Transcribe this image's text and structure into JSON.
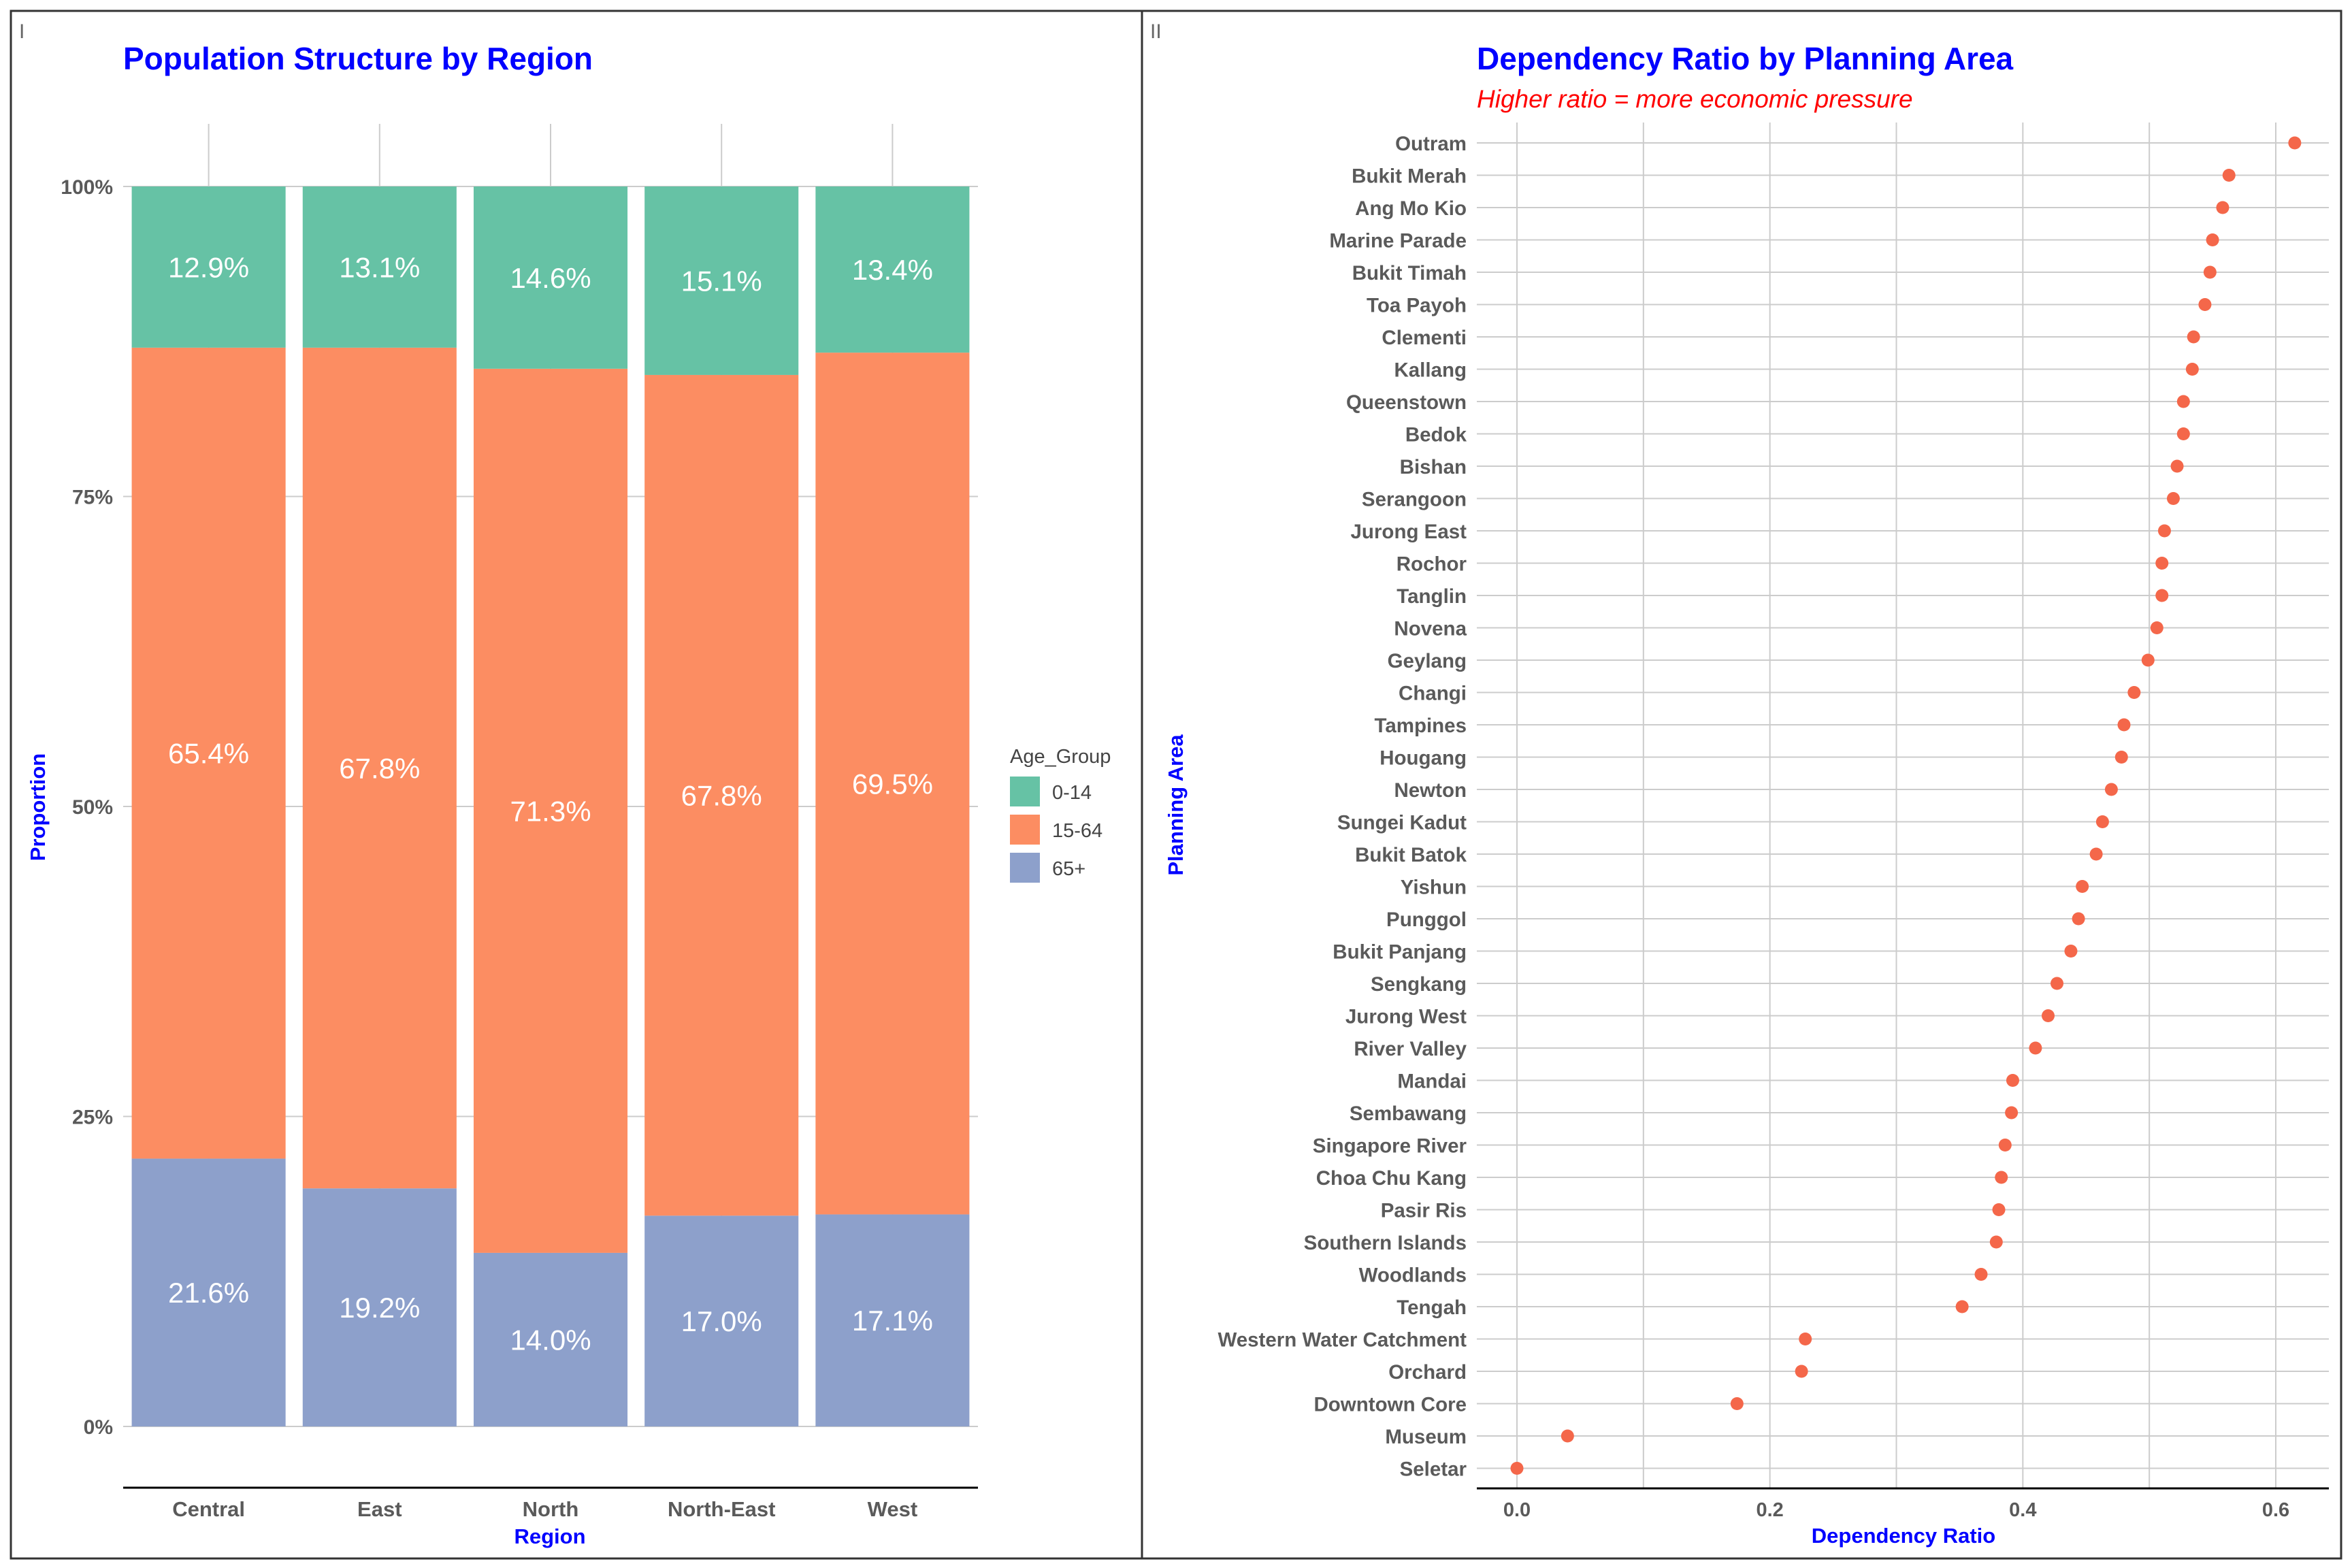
{
  "chart_data": [
    {
      "panel_tag": "I",
      "type": "bar",
      "stacked": true,
      "normalized": true,
      "title": "Population Structure by Region",
      "xlabel": "Region",
      "ylabel": "Proportion",
      "categories": [
        "Central",
        "East",
        "North",
        "North-East",
        "West"
      ],
      "yticks": [
        "0%",
        "25%",
        "50%",
        "75%",
        "100%"
      ],
      "ylim": [
        0,
        1
      ],
      "grid": true,
      "legend": {
        "title": "Age_Group",
        "position": "right"
      },
      "series": [
        {
          "name": "0-14",
          "color": "#66c2a5",
          "values": [
            0.129,
            0.131,
            0.146,
            0.151,
            0.134
          ],
          "labels": [
            "12.9%",
            "13.1%",
            "14.6%",
            "15.1%",
            "13.4%"
          ]
        },
        {
          "name": "15-64",
          "color": "#fc8d62",
          "values": [
            0.654,
            0.678,
            0.713,
            0.678,
            0.695
          ],
          "labels": [
            "65.4%",
            "67.8%",
            "71.3%",
            "67.8%",
            "69.5%"
          ]
        },
        {
          "name": "65+",
          "color": "#8da0cb",
          "values": [
            0.216,
            0.192,
            0.14,
            0.17,
            0.171
          ],
          "labels": [
            "21.6%",
            "19.2%",
            "14.0%",
            "17.0%",
            "17.1%"
          ]
        }
      ],
      "colors": {
        "title": "#0000ff",
        "axis_title": "#0000ff",
        "tick_label": "#5a5a5a",
        "data_label": "#ffffff",
        "grid": "#cccccc"
      }
    },
    {
      "panel_tag": "II",
      "type": "scatter",
      "style": "dot plot",
      "title": "Dependency Ratio by Planning Area",
      "subtitle": "Higher ratio = more economic pressure",
      "xlabel": "Dependency Ratio",
      "ylabel": "Planning Area",
      "xlim": [
        -0.03,
        0.65
      ],
      "xticks": [
        0.0,
        0.2,
        0.4,
        0.6
      ],
      "xtick_labels": [
        "0.0",
        "0.2",
        "0.4",
        "0.6"
      ],
      "grid": true,
      "point_color": "#f4674a",
      "colors": {
        "title": "#0000ff",
        "subtitle": "#ff0000",
        "axis_title": "#0000ff",
        "tick_label": "#5a5a5a",
        "grid": "#cccccc"
      },
      "categories": [
        "Outram",
        "Bukit Merah",
        "Ang Mo Kio",
        "Marine Parade",
        "Bukit Timah",
        "Toa Payoh",
        "Clementi",
        "Kallang",
        "Queenstown",
        "Bedok",
        "Bishan",
        "Serangoon",
        "Jurong East",
        "Rochor",
        "Tanglin",
        "Novena",
        "Geylang",
        "Changi",
        "Tampines",
        "Hougang",
        "Newton",
        "Sungei Kadut",
        "Bukit Batok",
        "Yishun",
        "Punggol",
        "Bukit Panjang",
        "Sengkang",
        "Jurong West",
        "River Valley",
        "Mandai",
        "Sembawang",
        "Singapore River",
        "Choa Chu Kang",
        "Pasir Ris",
        "Southern Islands",
        "Woodlands",
        "Tengah",
        "Western Water Catchment",
        "Orchard",
        "Downtown Core",
        "Museum",
        "Seletar"
      ],
      "values": [
        0.615,
        0.563,
        0.558,
        0.55,
        0.548,
        0.544,
        0.535,
        0.534,
        0.527,
        0.527,
        0.522,
        0.519,
        0.512,
        0.51,
        0.51,
        0.506,
        0.499,
        0.488,
        0.48,
        0.478,
        0.47,
        0.463,
        0.458,
        0.447,
        0.444,
        0.438,
        0.427,
        0.42,
        0.41,
        0.392,
        0.391,
        0.386,
        0.383,
        0.381,
        0.379,
        0.367,
        0.352,
        0.228,
        0.225,
        0.174,
        0.04,
        0.0
      ]
    }
  ]
}
